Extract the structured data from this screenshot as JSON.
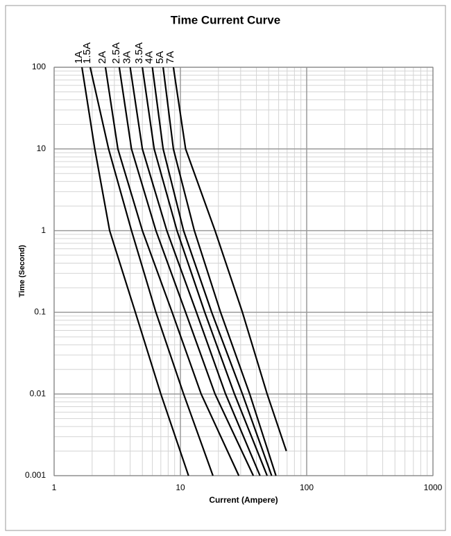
{
  "chart_data": {
    "type": "line",
    "title": "Time Current Curve",
    "x_label": "Current (Ampere)",
    "y_label": "Time (Second)",
    "xscale": "log",
    "yscale": "log",
    "grid": true,
    "xlim": [
      1,
      1000
    ],
    "xticks": [
      1,
      10,
      100,
      1000
    ],
    "ylim": [
      0.001,
      100
    ],
    "yticks": [
      0.001,
      0.01,
      0.1,
      1,
      10,
      100
    ],
    "series": [
      {
        "name": "1A",
        "color": "#000000",
        "x": [
          1.66,
          2.1,
          2.75,
          4.4,
          7.0,
          11.6
        ],
        "values": [
          100,
          10,
          1,
          0.1,
          0.01,
          0.001
        ]
      },
      {
        "name": "1.5A",
        "color": "#000000",
        "x": [
          1.93,
          2.7,
          4.1,
          6.4,
          10.6,
          18.1
        ],
        "values": [
          100,
          10,
          1,
          0.1,
          0.01,
          0.001
        ]
      },
      {
        "name": "2A",
        "color": "#000000",
        "x": [
          2.55,
          3.2,
          5.0,
          8.6,
          14.6,
          29
        ],
        "values": [
          100,
          10,
          1,
          0.1,
          0.01,
          0.001
        ]
      },
      {
        "name": "2.5A",
        "color": "#000000",
        "x": [
          3.28,
          4.1,
          6.4,
          11.0,
          18.8,
          37.8
        ],
        "values": [
          100,
          10,
          1,
          0.1,
          0.01,
          0.001
        ]
      },
      {
        "name": "3A",
        "color": "#000000",
        "x": [
          4.0,
          5.0,
          7.8,
          13.4,
          22.8,
          42.7
        ],
        "values": [
          100,
          10,
          1,
          0.1,
          0.01,
          0.001
        ]
      },
      {
        "name": "3.5A",
        "color": "#000000",
        "x": [
          5.0,
          6.2,
          9.4,
          15.6,
          26.8,
          48.6
        ],
        "values": [
          100,
          10,
          1,
          0.1,
          0.01,
          0.001
        ]
      },
      {
        "name": "4A",
        "color": "#000000",
        "x": [
          6.0,
          7.3,
          10.6,
          17.7,
          31,
          52.8
        ],
        "values": [
          100,
          10,
          1,
          0.1,
          0.01,
          0.001
        ]
      },
      {
        "name": "5A",
        "color": "#000000",
        "x": [
          7.3,
          8.8,
          12.9,
          20.8,
          35.4,
          57.1
        ],
        "values": [
          100,
          10,
          1,
          0.1,
          0.01,
          0.001
        ]
      },
      {
        "name": "7A",
        "color": "#000000",
        "x": [
          8.8,
          11.0,
          18.8,
          31,
          48.6,
          69
        ],
        "values": [
          100,
          10,
          1,
          0.1,
          0.01,
          0.002
        ]
      }
    ]
  }
}
